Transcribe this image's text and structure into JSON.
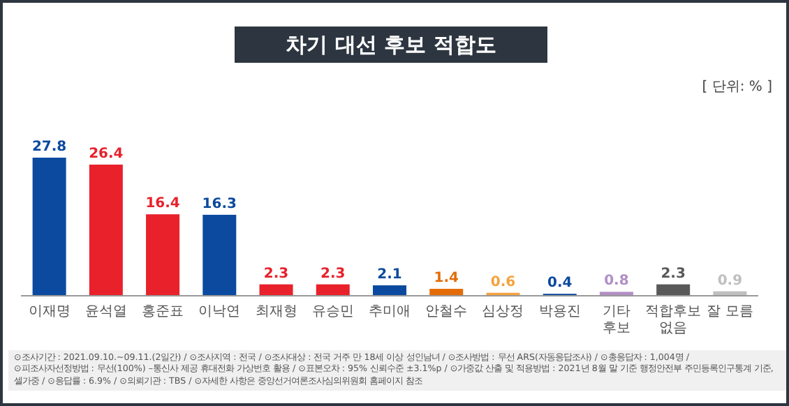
{
  "chart_data": {
    "type": "bar",
    "title": "차기 대선 후보 적합도",
    "subtitle": "[ 단위: % ]",
    "categories": [
      "이재명",
      "윤석열",
      "홍준표",
      "이낙연",
      "최재형",
      "유승민",
      "추미애",
      "안철수",
      "심상정",
      "박용진",
      "기타 후보",
      "적합후보 없음",
      "잘 모름"
    ],
    "values": [
      27.8,
      26.4,
      16.4,
      16.3,
      2.3,
      2.3,
      2.1,
      1.4,
      0.6,
      0.4,
      0.8,
      2.3,
      0.9
    ],
    "colors": [
      "#0b4a9e",
      "#e8212b",
      "#e8212b",
      "#0b4a9e",
      "#e8212b",
      "#e8212b",
      "#0b4a9e",
      "#e36c09",
      "#f5a23c",
      "#0b4a9e",
      "#b28fc4",
      "#595959",
      "#bfbfbf"
    ],
    "data_labels": true,
    "annotations": [
      "⊙조사기간 : 2021.09.10.~09.11.(2일간) / ⊙조사지역 : 전국 / ⊙조사대상 : 전국 거주 만 18세 이상 성인남녀 / ⊙조사방법 : 무선 ARS(자동응답조사) / ⊙총응답자 : 1,004명 /",
      "⊙피조사자선정방법 : 무선(100%) –통신사 제공 휴대전화 가상번호 활용 / ⊙표본오차 : 95% 신뢰수준 ±3.1%p / ⊙가중값 산출 및 적용방법 : 2021년 8월 말 기준 행정안전부 주민등록인구통계 기준, 셀가중 / ⊙응답률 : 6.9% / ⊙의뢰기관 : TBS / ⊙자세한 사항은 중앙선거여론조사심의위원회 홈페이지 참조"
    ]
  }
}
